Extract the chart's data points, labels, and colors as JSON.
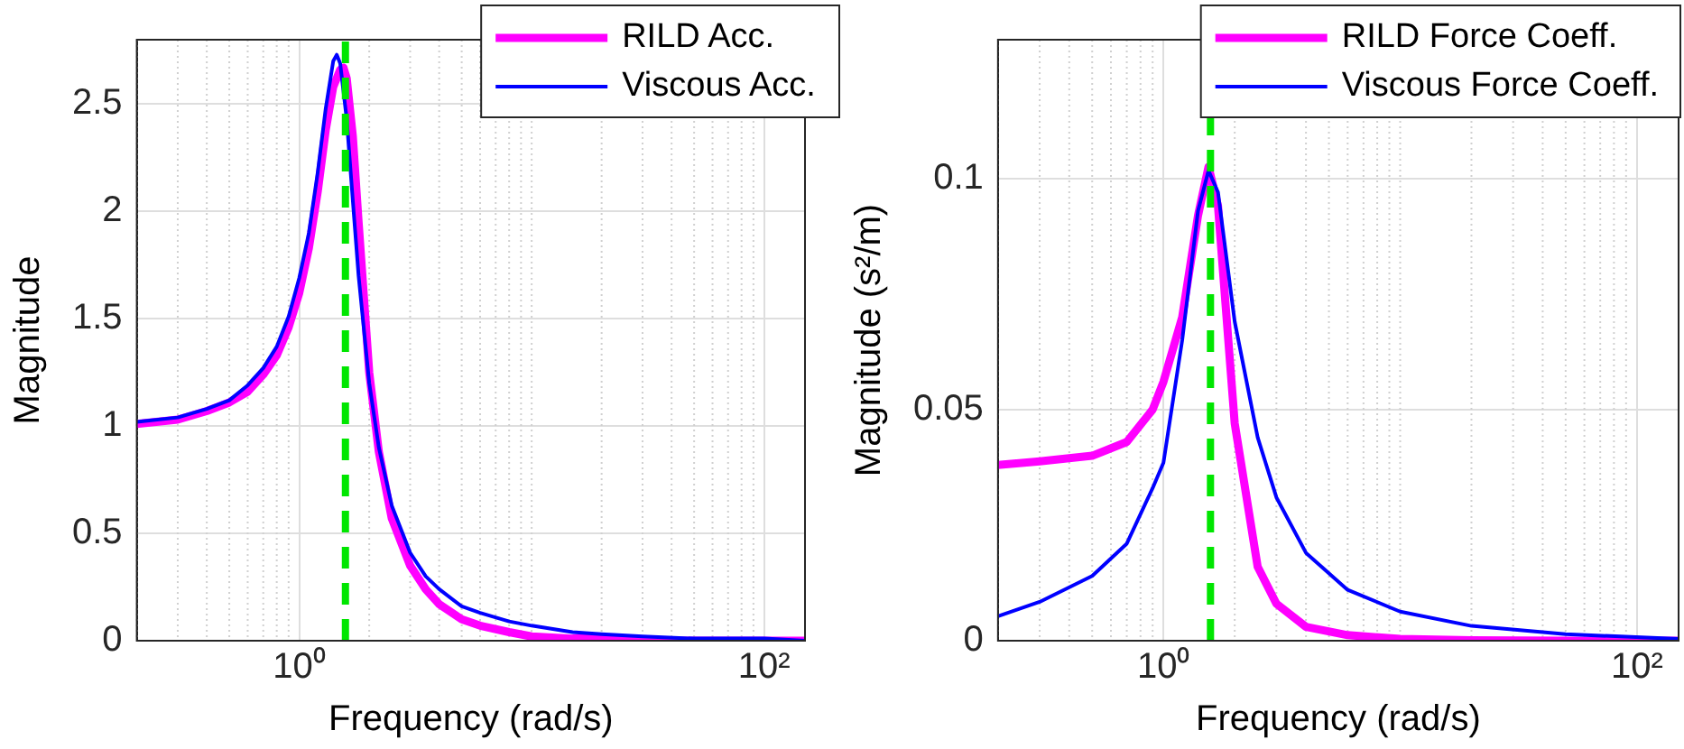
{
  "chart_data": [
    {
      "type": "line",
      "xlabel": "Frequency (rad/s)",
      "ylabel": "Magnitude",
      "log": "x",
      "grid": true,
      "legend": "top right",
      "xlim": [
        0.2,
        150
      ],
      "ylim": [
        0,
        2.8
      ],
      "xticks": [
        {
          "value": 0.2,
          "label": null
        },
        {
          "value": 0.3,
          "label": null
        },
        {
          "value": 0.4,
          "label": null
        },
        {
          "value": 0.5,
          "label": null
        },
        {
          "value": 0.6,
          "label": null
        },
        {
          "value": 0.7,
          "label": null
        },
        {
          "value": 0.8,
          "label": null
        },
        {
          "value": 0.9,
          "label": null
        },
        {
          "value": 1,
          "label": "10⁰"
        },
        {
          "value": 2,
          "label": null
        },
        {
          "value": 3,
          "label": null
        },
        {
          "value": 4,
          "label": null
        },
        {
          "value": 5,
          "label": null
        },
        {
          "value": 6,
          "label": null
        },
        {
          "value": 7,
          "label": null
        },
        {
          "value": 8,
          "label": null
        },
        {
          "value": 9,
          "label": null
        },
        {
          "value": 10,
          "label": null
        },
        {
          "value": 20,
          "label": null
        },
        {
          "value": 30,
          "label": null
        },
        {
          "value": 40,
          "label": null
        },
        {
          "value": 50,
          "label": null
        },
        {
          "value": 60,
          "label": null
        },
        {
          "value": 70,
          "label": null
        },
        {
          "value": 80,
          "label": null
        },
        {
          "value": 90,
          "label": null
        },
        {
          "value": 100,
          "label": "10²"
        }
      ],
      "yticks": [
        0,
        0.5,
        1,
        1.5,
        2,
        2.5
      ],
      "ref_lines": [
        {
          "axis": "x",
          "value": 1.58,
          "color": "#00e600",
          "line_style": "dashed"
        }
      ],
      "series": [
        {
          "name": "RILD Acc.",
          "color": "#ff00ff",
          "x": [
            0.2,
            0.3,
            0.4,
            0.5,
            0.6,
            0.7,
            0.8,
            0.9,
            1,
            1.1,
            1.2,
            1.3,
            1.4,
            1.5,
            1.55,
            1.6,
            1.7,
            1.8,
            2,
            2.2,
            2.5,
            3,
            3.5,
            4,
            5,
            6,
            8,
            10,
            15,
            20,
            30,
            50,
            100,
            150
          ],
          "values": [
            1.01,
            1.03,
            1.07,
            1.11,
            1.16,
            1.24,
            1.33,
            1.46,
            1.62,
            1.83,
            2.09,
            2.38,
            2.58,
            2.66,
            2.67,
            2.62,
            2.35,
            1.95,
            1.25,
            0.88,
            0.57,
            0.35,
            0.24,
            0.17,
            0.1,
            0.07,
            0.04,
            0.02,
            0.01,
            0.01,
            0,
            0,
            0,
            0
          ]
        },
        {
          "name": "Viscous Acc.",
          "color": "#0000ff",
          "x": [
            0.2,
            0.3,
            0.4,
            0.5,
            0.6,
            0.7,
            0.8,
            0.9,
            1,
            1.1,
            1.2,
            1.3,
            1.4,
            1.45,
            1.5,
            1.6,
            1.7,
            1.8,
            2,
            2.2,
            2.5,
            3,
            3.5,
            4,
            5,
            6,
            8,
            10,
            15,
            20,
            30,
            50,
            100,
            150
          ],
          "values": [
            1.02,
            1.04,
            1.08,
            1.12,
            1.19,
            1.27,
            1.37,
            1.51,
            1.69,
            1.9,
            2.18,
            2.48,
            2.7,
            2.73,
            2.69,
            2.43,
            2.05,
            1.7,
            1.2,
            0.9,
            0.63,
            0.41,
            0.3,
            0.24,
            0.16,
            0.13,
            0.09,
            0.07,
            0.04,
            0.03,
            0.02,
            0.01,
            0.01,
            0
          ]
        }
      ]
    },
    {
      "type": "line",
      "xlabel": "Frequency (rad/s)",
      "ylabel": "Magnitude (s²/m)",
      "log": "x",
      "grid": true,
      "legend": "top right",
      "xlim": [
        0.2,
        150
      ],
      "ylim": [
        0,
        0.13
      ],
      "xticks": [
        {
          "value": 0.2,
          "label": null
        },
        {
          "value": 0.3,
          "label": null
        },
        {
          "value": 0.4,
          "label": null
        },
        {
          "value": 0.5,
          "label": null
        },
        {
          "value": 0.6,
          "label": null
        },
        {
          "value": 0.7,
          "label": null
        },
        {
          "value": 0.8,
          "label": null
        },
        {
          "value": 0.9,
          "label": null
        },
        {
          "value": 1,
          "label": "10⁰"
        },
        {
          "value": 2,
          "label": null
        },
        {
          "value": 3,
          "label": null
        },
        {
          "value": 4,
          "label": null
        },
        {
          "value": 5,
          "label": null
        },
        {
          "value": 6,
          "label": null
        },
        {
          "value": 7,
          "label": null
        },
        {
          "value": 8,
          "label": null
        },
        {
          "value": 9,
          "label": null
        },
        {
          "value": 10,
          "label": null
        },
        {
          "value": 20,
          "label": null
        },
        {
          "value": 30,
          "label": null
        },
        {
          "value": 40,
          "label": null
        },
        {
          "value": 50,
          "label": null
        },
        {
          "value": 60,
          "label": null
        },
        {
          "value": 70,
          "label": null
        },
        {
          "value": 80,
          "label": null
        },
        {
          "value": 90,
          "label": null
        },
        {
          "value": 100,
          "label": "10²"
        }
      ],
      "yticks": [
        0,
        0.05,
        0.1
      ],
      "ref_lines": [
        {
          "axis": "x",
          "value": 1.58,
          "color": "#00e600",
          "line_style": "dashed"
        }
      ],
      "series": [
        {
          "name": "RILD Force Coeff.",
          "color": "#ff00ff",
          "x": [
            0.2,
            0.3,
            0.5,
            0.7,
            0.9,
            1,
            1.2,
            1.4,
            1.55,
            1.7,
            2,
            2.5,
            3,
            4,
            6,
            10,
            20,
            50,
            150
          ],
          "values": [
            0.038,
            0.0388,
            0.04,
            0.043,
            0.05,
            0.056,
            0.07,
            0.092,
            0.1025,
            0.094,
            0.047,
            0.016,
            0.008,
            0.003,
            0.0012,
            0.0004,
            0.0001,
            0,
            0
          ]
        },
        {
          "name": "Viscous Force Coeff.",
          "color": "#0000ff",
          "x": [
            0.2,
            0.3,
            0.5,
            0.7,
            0.9,
            1,
            1.2,
            1.4,
            1.55,
            1.7,
            2,
            2.5,
            3,
            4,
            6,
            10,
            20,
            50,
            150
          ],
          "values": [
            0.0053,
            0.0084,
            0.014,
            0.021,
            0.033,
            0.0385,
            0.065,
            0.093,
            0.1017,
            0.097,
            0.069,
            0.044,
            0.031,
            0.019,
            0.011,
            0.0063,
            0.0032,
            0.0014,
            0.0004
          ]
        }
      ]
    }
  ]
}
